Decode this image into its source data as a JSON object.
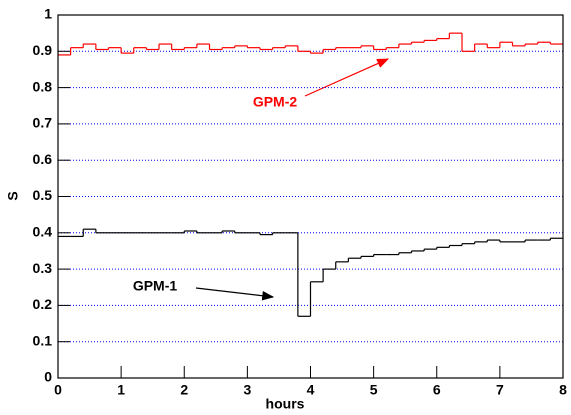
{
  "chart_data": {
    "type": "histogram",
    "x_label": "hours",
    "y_label": "S",
    "bins": [
      0,
      0.2,
      0.4,
      0.6,
      0.8,
      1,
      1.2,
      1.4,
      1.6,
      1.8,
      2,
      2.2,
      2.4,
      2.6,
      2.8,
      3,
      3.2,
      3.4,
      3.6,
      3.8,
      4,
      4.2,
      4.4,
      4.6,
      4.8,
      5,
      5.2,
      5.4,
      5.6,
      5.8,
      6,
      6.2,
      6.4,
      6.6,
      6.8,
      7,
      7.2,
      7.4,
      7.6,
      7.8,
      8
    ],
    "series": [
      {
        "name": "GPM-1",
        "color": "#000000",
        "values": [
          0.39,
          0.39,
          0.41,
          0.4,
          0.4,
          0.4,
          0.4,
          0.4,
          0.4,
          0.4,
          0.405,
          0.4,
          0.4,
          0.405,
          0.4,
          0.4,
          0.395,
          0.4,
          0.4,
          0.17,
          0.265,
          0.3,
          0.32,
          0.33,
          0.335,
          0.34,
          0.34,
          0.345,
          0.35,
          0.355,
          0.36,
          0.365,
          0.37,
          0.375,
          0.38,
          0.375,
          0.375,
          0.38,
          0.38,
          0.385
        ]
      },
      {
        "name": "GPM-2",
        "color": "#ff0000",
        "values": [
          0.89,
          0.91,
          0.92,
          0.905,
          0.91,
          0.895,
          0.91,
          0.905,
          0.92,
          0.905,
          0.91,
          0.92,
          0.905,
          0.91,
          0.915,
          0.91,
          0.905,
          0.91,
          0.915,
          0.9,
          0.895,
          0.905,
          0.91,
          0.91,
          0.915,
          0.905,
          0.91,
          0.92,
          0.925,
          0.93,
          0.935,
          0.95,
          0.9,
          0.92,
          0.91,
          0.925,
          0.915,
          0.92,
          0.925,
          0.92
        ]
      }
    ],
    "xlim": [
      0,
      8
    ],
    "xticks": [
      0,
      1,
      2,
      3,
      4,
      5,
      6,
      7,
      8
    ],
    "ylim": [
      0,
      1
    ],
    "yticks": [
      0,
      0.1,
      0.2,
      0.3,
      0.4,
      0.5,
      0.6,
      0.7,
      0.8,
      0.9,
      1
    ],
    "grid": true,
    "grid_color": "#0000ff"
  }
}
